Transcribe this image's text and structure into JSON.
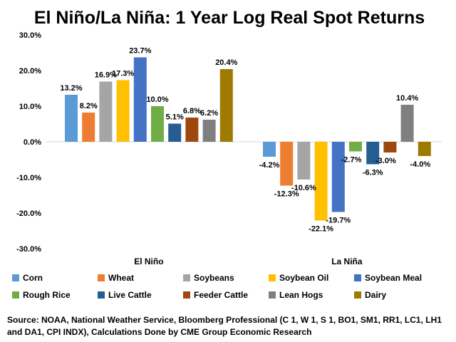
{
  "chart_data": {
    "type": "bar",
    "title": "El Niño/La Niña: 1 Year Log Real Spot Returns",
    "categories": [
      "El Niño",
      "La Niña"
    ],
    "ylim": [
      -30,
      30
    ],
    "yticks": [
      -30,
      -20,
      -10,
      0,
      10,
      20,
      30
    ],
    "ytick_labels": [
      "-30.0%",
      "-20.0%",
      "-10.0%",
      "0.0%",
      "10.0%",
      "20.0%",
      "30.0%"
    ],
    "grid": false,
    "legend_position": "bottom",
    "series": [
      {
        "name": "Corn",
        "color": "#5B9BD5",
        "values": [
          13.2,
          -4.2
        ],
        "labels": [
          "13.2%",
          "-4.2%"
        ]
      },
      {
        "name": "Wheat",
        "color": "#ED7D31",
        "values": [
          8.2,
          -12.3
        ],
        "labels": [
          "8.2%",
          "-12.3%"
        ]
      },
      {
        "name": "Soybeans",
        "color": "#A5A5A5",
        "values": [
          16.9,
          -10.6
        ],
        "labels": [
          "16.9%",
          "-10.6%"
        ]
      },
      {
        "name": "Soybean Oil",
        "color": "#FFC000",
        "values": [
          17.3,
          -22.1
        ],
        "labels": [
          "17.3%",
          "-22.1%"
        ]
      },
      {
        "name": "Soybean Meal",
        "color": "#4472C4",
        "values": [
          23.7,
          -19.7
        ],
        "labels": [
          "23.7%",
          "-19.7%"
        ]
      },
      {
        "name": "Rough Rice",
        "color": "#70AD47",
        "values": [
          10.0,
          -2.7
        ],
        "labels": [
          "10.0%",
          "-2.7%"
        ]
      },
      {
        "name": "Live Cattle",
        "color": "#255E91",
        "values": [
          5.1,
          -6.3
        ],
        "labels": [
          "5.1%",
          "-6.3%"
        ]
      },
      {
        "name": "Feeder Cattle",
        "color": "#9E480E",
        "values": [
          6.8,
          -3.0
        ],
        "labels": [
          "6.8%",
          "-3.0%"
        ]
      },
      {
        "name": "Lean Hogs",
        "color": "#7F7F7F",
        "values": [
          6.2,
          10.4
        ],
        "labels": [
          "6.2%",
          "10.4%"
        ]
      },
      {
        "name": "Dairy",
        "color": "#9E7A00",
        "values": [
          20.4,
          -4.0
        ],
        "labels": [
          "20.4%",
          "-4.0%"
        ]
      }
    ]
  },
  "source_note": "Source: NOAA, National Weather Service, Bloomberg Professional (C 1, W 1, S 1, BO1, SM1, RR1, LC1, LH1 and DA1, CPI INDX), Calculations Done by CME Group Economic Research"
}
